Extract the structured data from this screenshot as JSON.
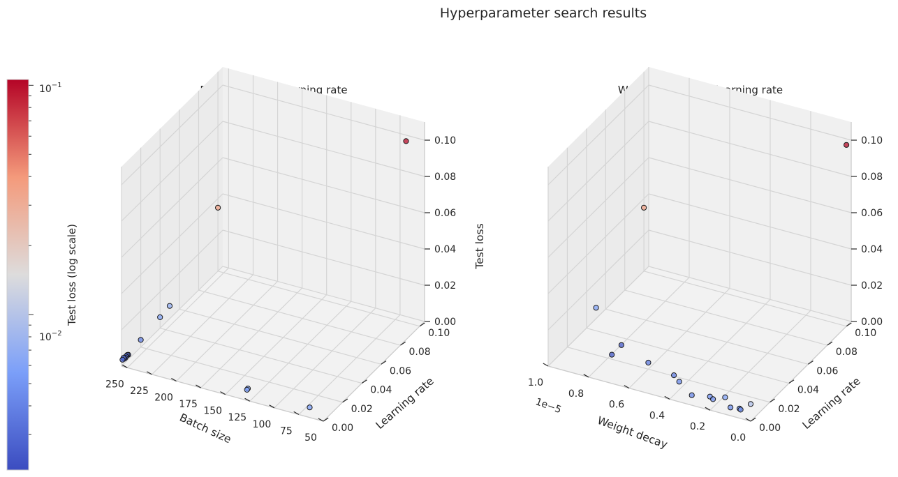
{
  "figure": {
    "title": "Hyperparameter search results"
  },
  "colorbar": {
    "label": "Test loss (log scale)",
    "ticks": [
      {
        "label": "10",
        "exp": "−1",
        "value": 0.1
      },
      {
        "label": "10",
        "exp": "−2",
        "value": 0.01
      }
    ],
    "min": 0.0021,
    "max": 0.106,
    "colormap": "coolwarm"
  },
  "chart_data": [
    {
      "type": "scatter3d",
      "title": "Batch size and learning rate",
      "xlabel": "Batch size",
      "ylabel": "Learning rate",
      "zlabel": "Test loss",
      "xlim": [
        50,
        256
      ],
      "ylim": [
        0,
        0.105
      ],
      "zlim": [
        0,
        0.11
      ],
      "x_ticks": [
        "50",
        "75",
        "100",
        "125",
        "150",
        "175",
        "200",
        "225",
        "250"
      ],
      "y_ticks": [
        "0.00",
        "0.02",
        "0.04",
        "0.06",
        "0.08",
        "0.10"
      ],
      "z_ticks": [
        "0.00",
        "0.02",
        "0.04",
        "0.06",
        "0.08",
        "0.10"
      ],
      "points": [
        {
          "x": 64,
          "y": 0.1,
          "z": 0.1
        },
        {
          "x": 256,
          "y": 0.1,
          "z": 0.035
        },
        {
          "x": 64,
          "y": 0.0001,
          "z": 0.0055
        },
        {
          "x": 128,
          "y": 0.0001,
          "z": 0.0058
        },
        {
          "x": 128,
          "y": 0.001,
          "z": 0.006
        },
        {
          "x": 256,
          "y": 0.05,
          "z": 0.007
        },
        {
          "x": 256,
          "y": 0.04,
          "z": 0.006
        },
        {
          "x": 256,
          "y": 0.02,
          "z": 0.004
        },
        {
          "x": 256,
          "y": 0.001,
          "z": 0.003
        },
        {
          "x": 256,
          "y": 0.002,
          "z": 0.0035
        },
        {
          "x": 256,
          "y": 0.003,
          "z": 0.0025
        },
        {
          "x": 256,
          "y": 0.004,
          "z": 0.0025
        },
        {
          "x": 256,
          "y": 0.0045,
          "z": 0.003
        },
        {
          "x": 256,
          "y": 0.005,
          "z": 0.0028
        },
        {
          "x": 256,
          "y": 0.006,
          "z": 0.003
        },
        {
          "x": 256,
          "y": 0.007,
          "z": 0.0026
        }
      ]
    },
    {
      "type": "scatter3d",
      "title": "Weight decay and learning rate",
      "xlabel": "Weight decay",
      "ylabel": "Learning rate",
      "zlabel": "",
      "offset_text": "1e−5",
      "xlim": [
        0,
        1.0
      ],
      "ylim": [
        0,
        0.105
      ],
      "zlim": [
        0,
        0.11
      ],
      "x_ticks": [
        "0.0",
        "0.2",
        "0.4",
        "0.6",
        "0.8",
        "1.0"
      ],
      "y_ticks": [
        "0.00",
        "0.02",
        "0.04",
        "0.06",
        "0.08",
        "0.10"
      ],
      "z_ticks": [
        "0.00",
        "0.02",
        "0.04",
        "0.06",
        "0.08",
        "0.10"
      ],
      "points": [
        {
          "x": 0.0,
          "y": 0.1,
          "z": 0.1
        },
        {
          "x": 0.0,
          "y": 0.0,
          "z": 0.0095
        },
        {
          "x": 1.0,
          "y": 0.1,
          "z": 0.035
        },
        {
          "x": 0.1,
          "y": 0.0001,
          "z": 0.0045
        },
        {
          "x": 0.15,
          "y": 0.005,
          "z": 0.006
        },
        {
          "x": 0.05,
          "y": 0.0001,
          "z": 0.0048
        },
        {
          "x": 0.06,
          "y": 0.001,
          "z": 0.0046
        },
        {
          "x": 0.2,
          "y": 0.003,
          "z": 0.0045
        },
        {
          "x": 0.22,
          "y": 0.004,
          "z": 0.0048
        },
        {
          "x": 0.3,
          "y": 0.002,
          "z": 0.0042
        },
        {
          "x": 0.4,
          "y": 0.01,
          "z": 0.0044
        },
        {
          "x": 0.45,
          "y": 0.015,
          "z": 0.0038
        },
        {
          "x": 0.6,
          "y": 0.02,
          "z": 0.0036
        },
        {
          "x": 0.78,
          "y": 0.03,
          "z": 0.0026
        },
        {
          "x": 0.78,
          "y": 0.02,
          "z": 0.0025
        },
        {
          "x": 1.0,
          "y": 0.05,
          "z": 0.006
        }
      ]
    }
  ]
}
